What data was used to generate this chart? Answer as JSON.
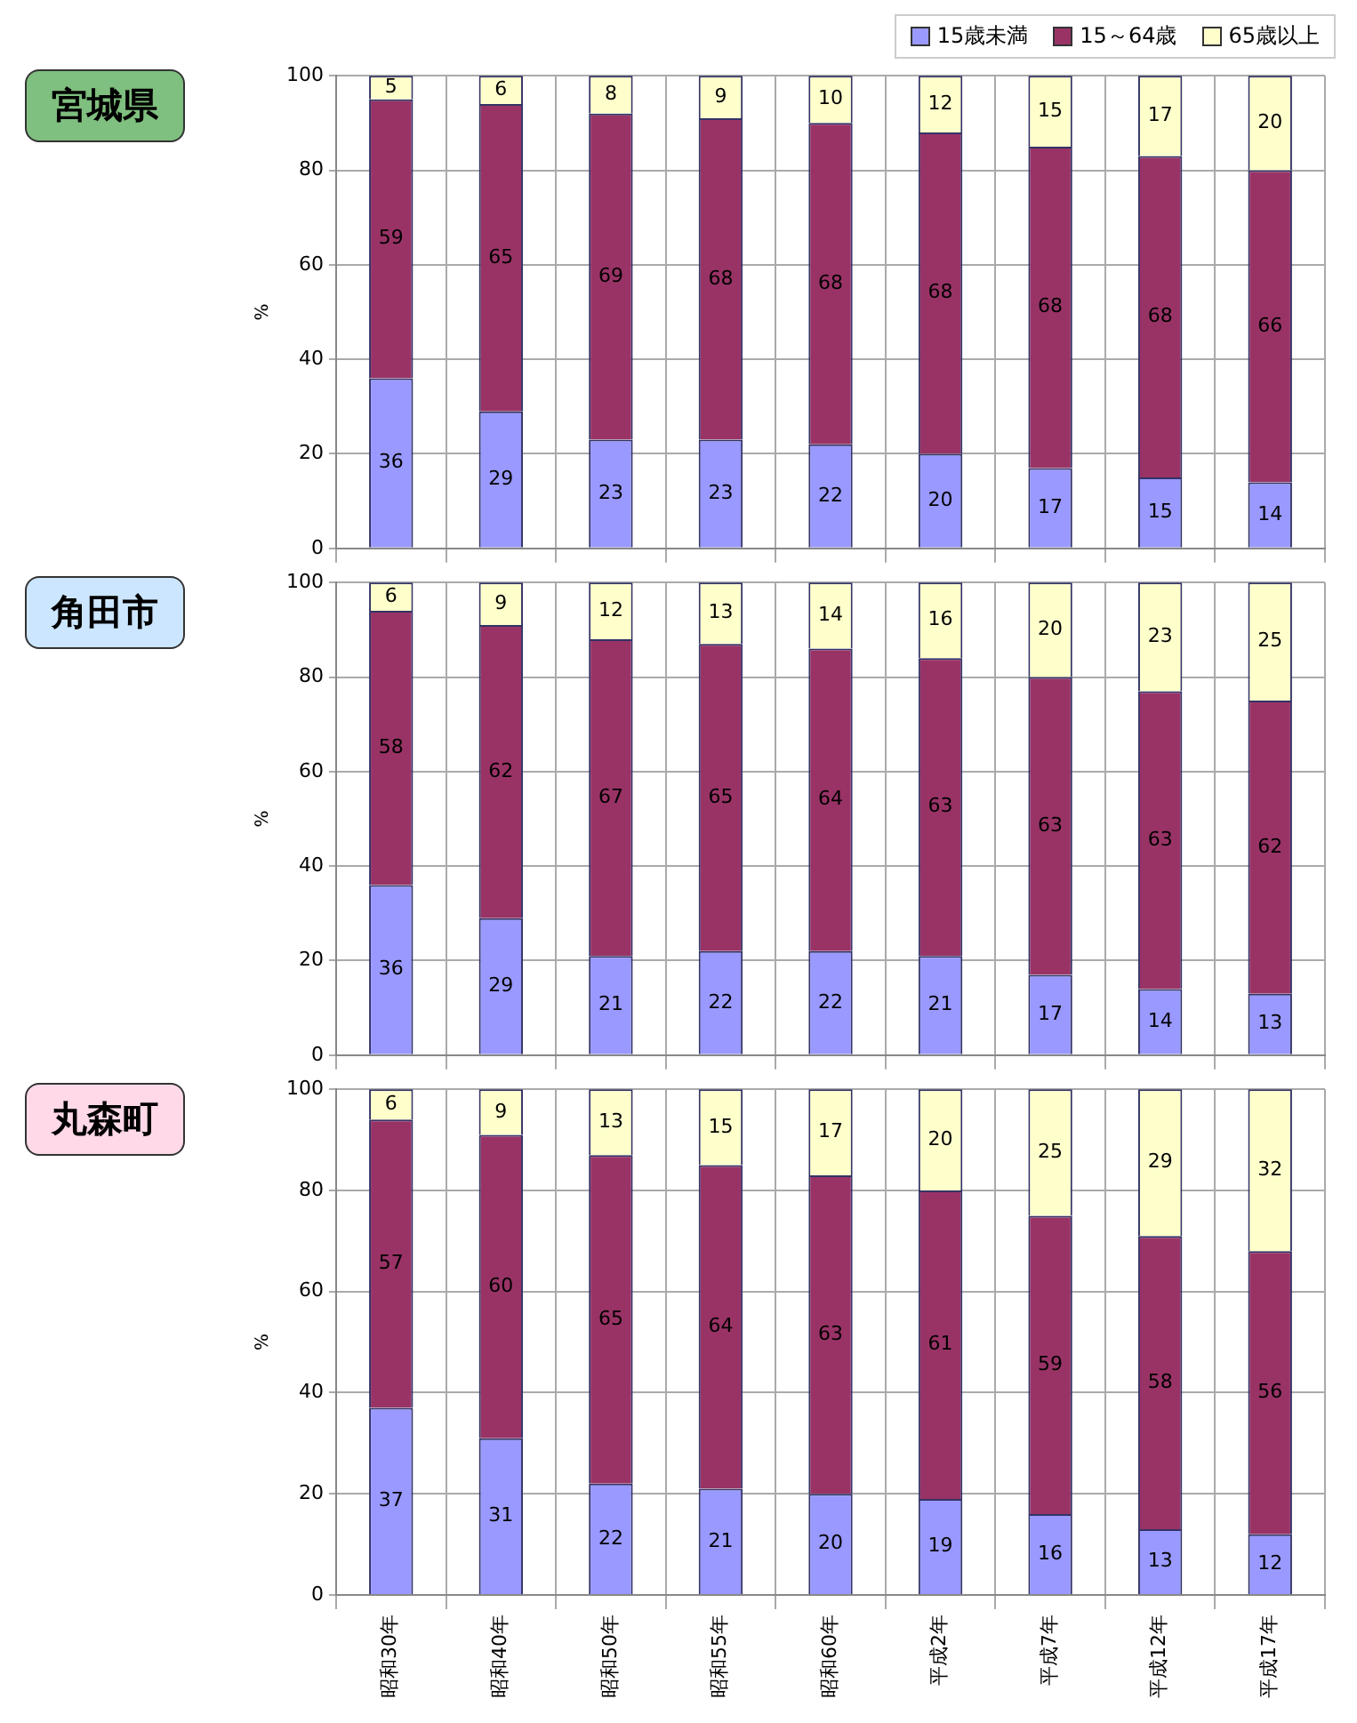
{
  "chart_data": [
    {
      "type": "bar",
      "title": "宮城県",
      "ylabel": "%",
      "stacked": true,
      "data_labels": true,
      "grid": true,
      "legend": "top right",
      "ylim": [
        0,
        100
      ],
      "yticks": [
        0,
        20,
        40,
        60,
        80,
        100
      ],
      "categories": [
        null,
        null,
        null,
        null,
        null,
        null,
        null,
        null,
        null
      ],
      "series": [
        {
          "name": "15歳未満",
          "color": "#9999ff",
          "values": [
            36,
            29,
            23,
            23,
            22,
            20,
            17,
            15,
            14
          ]
        },
        {
          "name": "15～64歳",
          "color": "#993366",
          "values": [
            59,
            65,
            69,
            68,
            68,
            68,
            68,
            68,
            66
          ]
        },
        {
          "name": "65歳以上",
          "color": "#ffffcc",
          "values": [
            5,
            6,
            8,
            9,
            10,
            12,
            15,
            17,
            20
          ]
        }
      ]
    },
    {
      "type": "bar",
      "title": "角田市",
      "ylabel": "%",
      "stacked": true,
      "data_labels": true,
      "grid": true,
      "ylim": [
        0,
        100
      ],
      "yticks": [
        0,
        20,
        40,
        60,
        80,
        100
      ],
      "categories": [
        null,
        null,
        null,
        null,
        null,
        null,
        null,
        null,
        null
      ],
      "series": [
        {
          "color": "#9999ff",
          "values": [
            36,
            29,
            21,
            22,
            22,
            21,
            17,
            14,
            13
          ]
        },
        {
          "color": "#993366",
          "values": [
            58,
            62,
            67,
            65,
            64,
            63,
            63,
            63,
            62
          ]
        },
        {
          "color": "#ffffcc",
          "values": [
            6,
            9,
            12,
            13,
            14,
            16,
            20,
            23,
            25
          ]
        }
      ]
    },
    {
      "type": "bar",
      "title": "丸森町",
      "ylabel": "%",
      "stacked": true,
      "data_labels": true,
      "grid": true,
      "ylim": [
        0,
        100
      ],
      "yticks": [
        0,
        20,
        40,
        60,
        80,
        100
      ],
      "categories": [
        "昭和30年",
        "昭和40年",
        "昭和50年",
        "昭和55年",
        "昭和60年",
        "平成2年",
        "平成7年",
        "平成12年",
        "平成17年"
      ],
      "series": [
        {
          "color": "#9999ff",
          "values": [
            37,
            31,
            22,
            21,
            20,
            19,
            16,
            13,
            12
          ]
        },
        {
          "color": "#993366",
          "values": [
            57,
            60,
            65,
            64,
            63,
            61,
            59,
            58,
            56
          ]
        },
        {
          "color": "#ffffcc",
          "values": [
            6,
            9,
            13,
            15,
            17,
            20,
            25,
            29,
            32
          ]
        }
      ]
    }
  ]
}
